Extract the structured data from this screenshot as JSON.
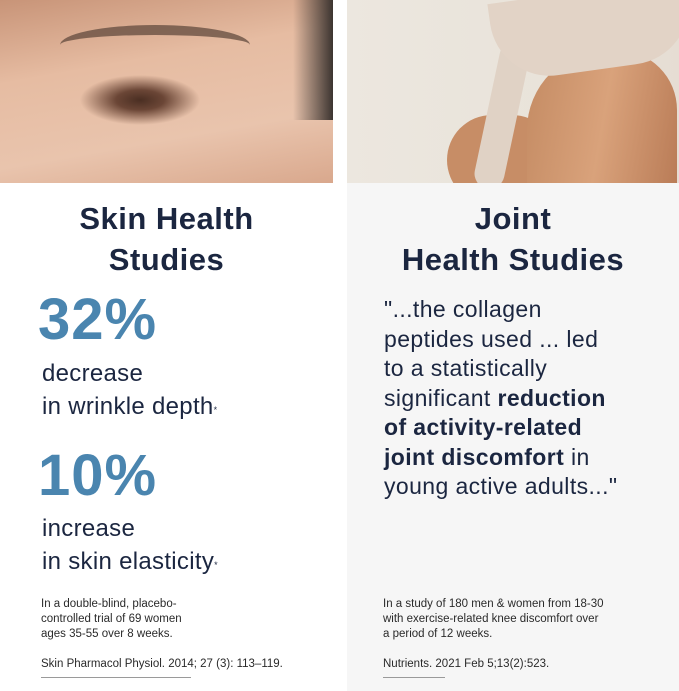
{
  "skin": {
    "title_line1": "Skin Health",
    "title_line2": "Studies",
    "stat1": {
      "value": "32%",
      "line1": "decrease",
      "line2": "in wrinkle depth",
      "mark": "*"
    },
    "stat2": {
      "value": "10%",
      "line1": "increase",
      "line2": "in skin elasticity",
      "mark": "*"
    },
    "note_lines": [
      "In a double-blind, placebo-",
      "controlled trial of 69 women",
      "ages 35-55 over 8 weeks."
    ],
    "citation": "Skin Pharmacol Physiol. 2014; 27 (3): 113–119."
  },
  "joint": {
    "title_line1": "Joint",
    "title_line2": "Health Studies",
    "quote": {
      "l1": "\"...the collagen",
      "l2": "peptides used ... led",
      "l3": "to a statistically",
      "l4a": "significant ",
      "l4b": "reduction",
      "l5": "of activity-related",
      "l6a": "joint discomfort",
      "l6b": " in",
      "l7": "young active adults...\""
    },
    "note_lines": [
      "In a study of 180 men & women from 18-30",
      "with exercise-related knee discomfort over",
      "a period of 12 weeks."
    ],
    "citation": "Nutrients. 2021 Feb 5;13(2):523."
  },
  "colors": {
    "heading": "#1b2640",
    "accent": "#4a85af",
    "right_bg": "#f6f6f6"
  }
}
